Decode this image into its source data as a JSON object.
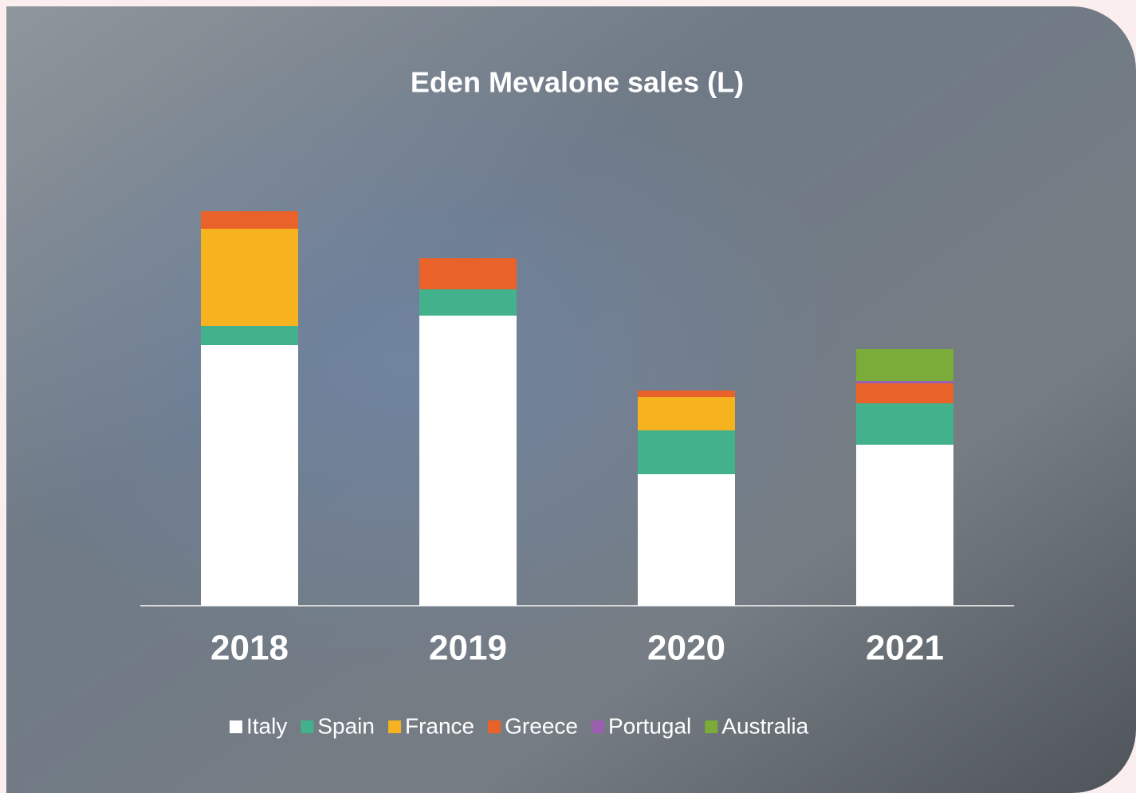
{
  "chart_data": {
    "type": "stacked-bar",
    "title": "Eden Mevalone sales (L)",
    "categories": [
      "2018",
      "2019",
      "2020",
      "2021"
    ],
    "series": [
      {
        "name": "Italy",
        "color": "#ffffff",
        "values": [
          327,
          364,
          165,
          202
        ]
      },
      {
        "name": "Spain",
        "color": "#43b18c",
        "values": [
          24,
          33,
          55,
          52
        ]
      },
      {
        "name": "France",
        "color": "#f6b21f",
        "values": [
          122,
          0,
          42,
          0
        ]
      },
      {
        "name": "Greece",
        "color": "#e8622a",
        "values": [
          22,
          39,
          8,
          25
        ]
      },
      {
        "name": "Portugal",
        "color": "#9b5fb0",
        "values": [
          0,
          0,
          0,
          3
        ]
      },
      {
        "name": "Australia",
        "color": "#7bab38",
        "values": [
          0,
          0,
          0,
          40
        ]
      }
    ],
    "ylim": [
      0,
      500
    ],
    "legend": "bottom"
  }
}
